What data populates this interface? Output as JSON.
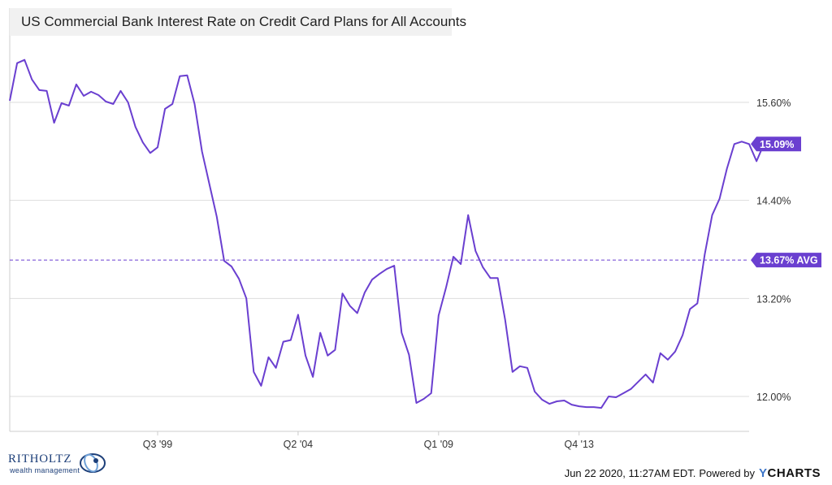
{
  "title": "US Commercial Bank Interest Rate on Credit Card Plans for All Accounts",
  "footer": {
    "timestamp": "Jun 22 2020, 11:27AM EDT.",
    "powered_by": "Powered by",
    "brand_y": "Y",
    "brand_rest": "CHARTS"
  },
  "logo": {
    "name": "RITHOLTZ",
    "sub": "wealth management"
  },
  "colors": {
    "line": "#6a3fd0",
    "label_bg": "#6a3fd0",
    "grid": "#dddddd",
    "axis_text": "#333333"
  },
  "chart_data": {
    "type": "line",
    "title": "US Commercial Bank Interest Rate on Credit Card Plans for All Accounts",
    "xlabel": "",
    "ylabel": "",
    "ylim": [
      11.8,
      16.3
    ],
    "grid": "horizontal",
    "x_tick_labels": [
      "Q3 '99",
      "Q2 '04",
      "Q1 '09",
      "Q4 '13"
    ],
    "x_tick_index": [
      20,
      39,
      58,
      77
    ],
    "y_ticks": [
      12.0,
      13.2,
      14.4,
      15.6
    ],
    "y_tick_labels": [
      "12.00%",
      "13.20%",
      "14.40%",
      "15.60%"
    ],
    "average": 13.67,
    "average_label": "13.67% AVG",
    "last_value": 15.09,
    "last_value_label": "15.09%",
    "series": [
      {
        "values": [
          15.62,
          16.08,
          16.12,
          15.88,
          15.75,
          15.74,
          15.35,
          15.59,
          15.56,
          15.82,
          15.68,
          15.73,
          15.69,
          15.61,
          15.58,
          15.74,
          15.6,
          15.3,
          15.11,
          14.98,
          15.05,
          15.52,
          15.58,
          15.92,
          15.93,
          15.58,
          15.0,
          14.6,
          14.2,
          13.66,
          13.59,
          13.44,
          13.2,
          12.3,
          12.13,
          12.48,
          12.35,
          12.67,
          12.69,
          13.0,
          12.5,
          12.24,
          12.78,
          12.5,
          12.57,
          13.26,
          13.11,
          13.02,
          13.27,
          13.43,
          13.5,
          13.56,
          13.6,
          12.78,
          12.51,
          11.92,
          11.97,
          12.04,
          12.99,
          13.33,
          13.71,
          13.62,
          14.22,
          13.78,
          13.58,
          13.45,
          13.45,
          12.94,
          12.3,
          12.37,
          12.35,
          12.06,
          11.96,
          11.91,
          11.94,
          11.95,
          11.9,
          11.88,
          11.87,
          11.87,
          11.86,
          12.0,
          11.99,
          12.04,
          12.09,
          12.18,
          12.27,
          12.17,
          12.53,
          12.45,
          12.55,
          12.75,
          13.07,
          13.14,
          13.74,
          14.22,
          14.42,
          14.79,
          15.09,
          15.12,
          15.09,
          14.88,
          15.09
        ]
      }
    ]
  }
}
